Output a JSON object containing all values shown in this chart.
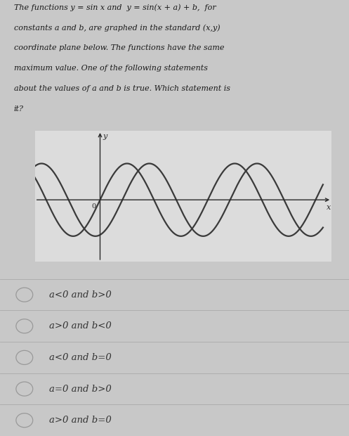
{
  "title_lines": [
    "The functions y = sin x and  y = sin(x + a) + b,  for",
    "constants a and b, are graphed in the standard (x,y)",
    "coordinate plane below. The functions have the same",
    "maximum value. One of the following statements",
    "about the values of a and b is true. Which statement is",
    "it?"
  ],
  "choices": [
    "a<0 and b>0",
    "a>0 and b<0",
    "a<0 and b=0",
    "a=0 and b>0",
    "a>0 and b=0"
  ],
  "bg_color": "#c8c8c8",
  "graph_bg_color": "#dcdcdc",
  "panel_bg_color": "#d4d4d4",
  "curve_color": "#3a3a3a",
  "axis_color": "#2a2a2a",
  "text_color": "#1a1a1a",
  "choice_color": "#333333",
  "circle_color": "#999999",
  "line_color": "#aaaaaa",
  "title_fontsize": 8.0,
  "choice_fontsize": 9.5,
  "graph_xlim": [
    -3.8,
    13.5
  ],
  "graph_ylim": [
    -1.7,
    1.9
  ],
  "phase_shift_a": -1.3,
  "phase_shift_b": 0.0
}
